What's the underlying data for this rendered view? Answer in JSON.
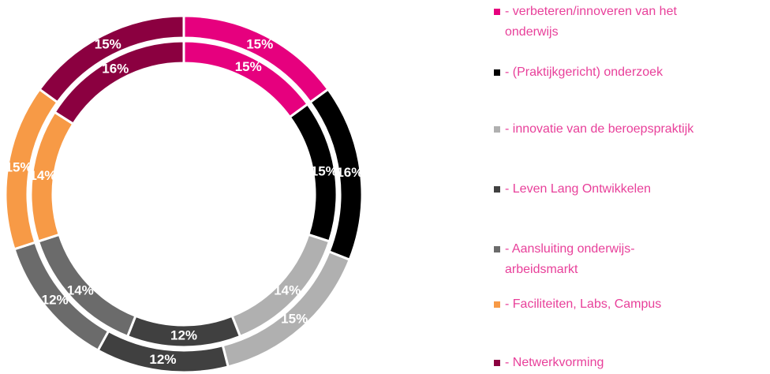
{
  "chart_data": {
    "type": "donut",
    "categories": [
      "- verbeteren/innoveren van het onderwijs",
      "- (Praktijkgericht) onderzoek",
      "- innovatie van de beroepspraktijk",
      "- Leven Lang Ontwikkelen",
      "- Aansluiting onderwijs-arbeidsmarkt",
      "- Faciliteiten, Labs, Campus",
      "- Netwerkvorming"
    ],
    "colors": [
      "#e6007e",
      "#000000",
      "#b0b0b0",
      "#404040",
      "#6b6b6b",
      "#f79a46",
      "#8b0040"
    ],
    "series": [
      {
        "values": [
          15,
          16,
          15,
          12,
          12,
          15,
          15
        ],
        "value_labels": [
          "15%",
          "16%",
          "15%",
          "12%",
          "12%",
          "15%",
          "15%"
        ]
      },
      {
        "values": [
          15,
          15,
          14,
          12,
          14,
          14,
          16
        ],
        "value_labels": [
          "15%",
          "15%",
          "14%",
          "12%",
          "14%",
          "14%",
          "16%"
        ]
      }
    ],
    "legend": "right"
  }
}
